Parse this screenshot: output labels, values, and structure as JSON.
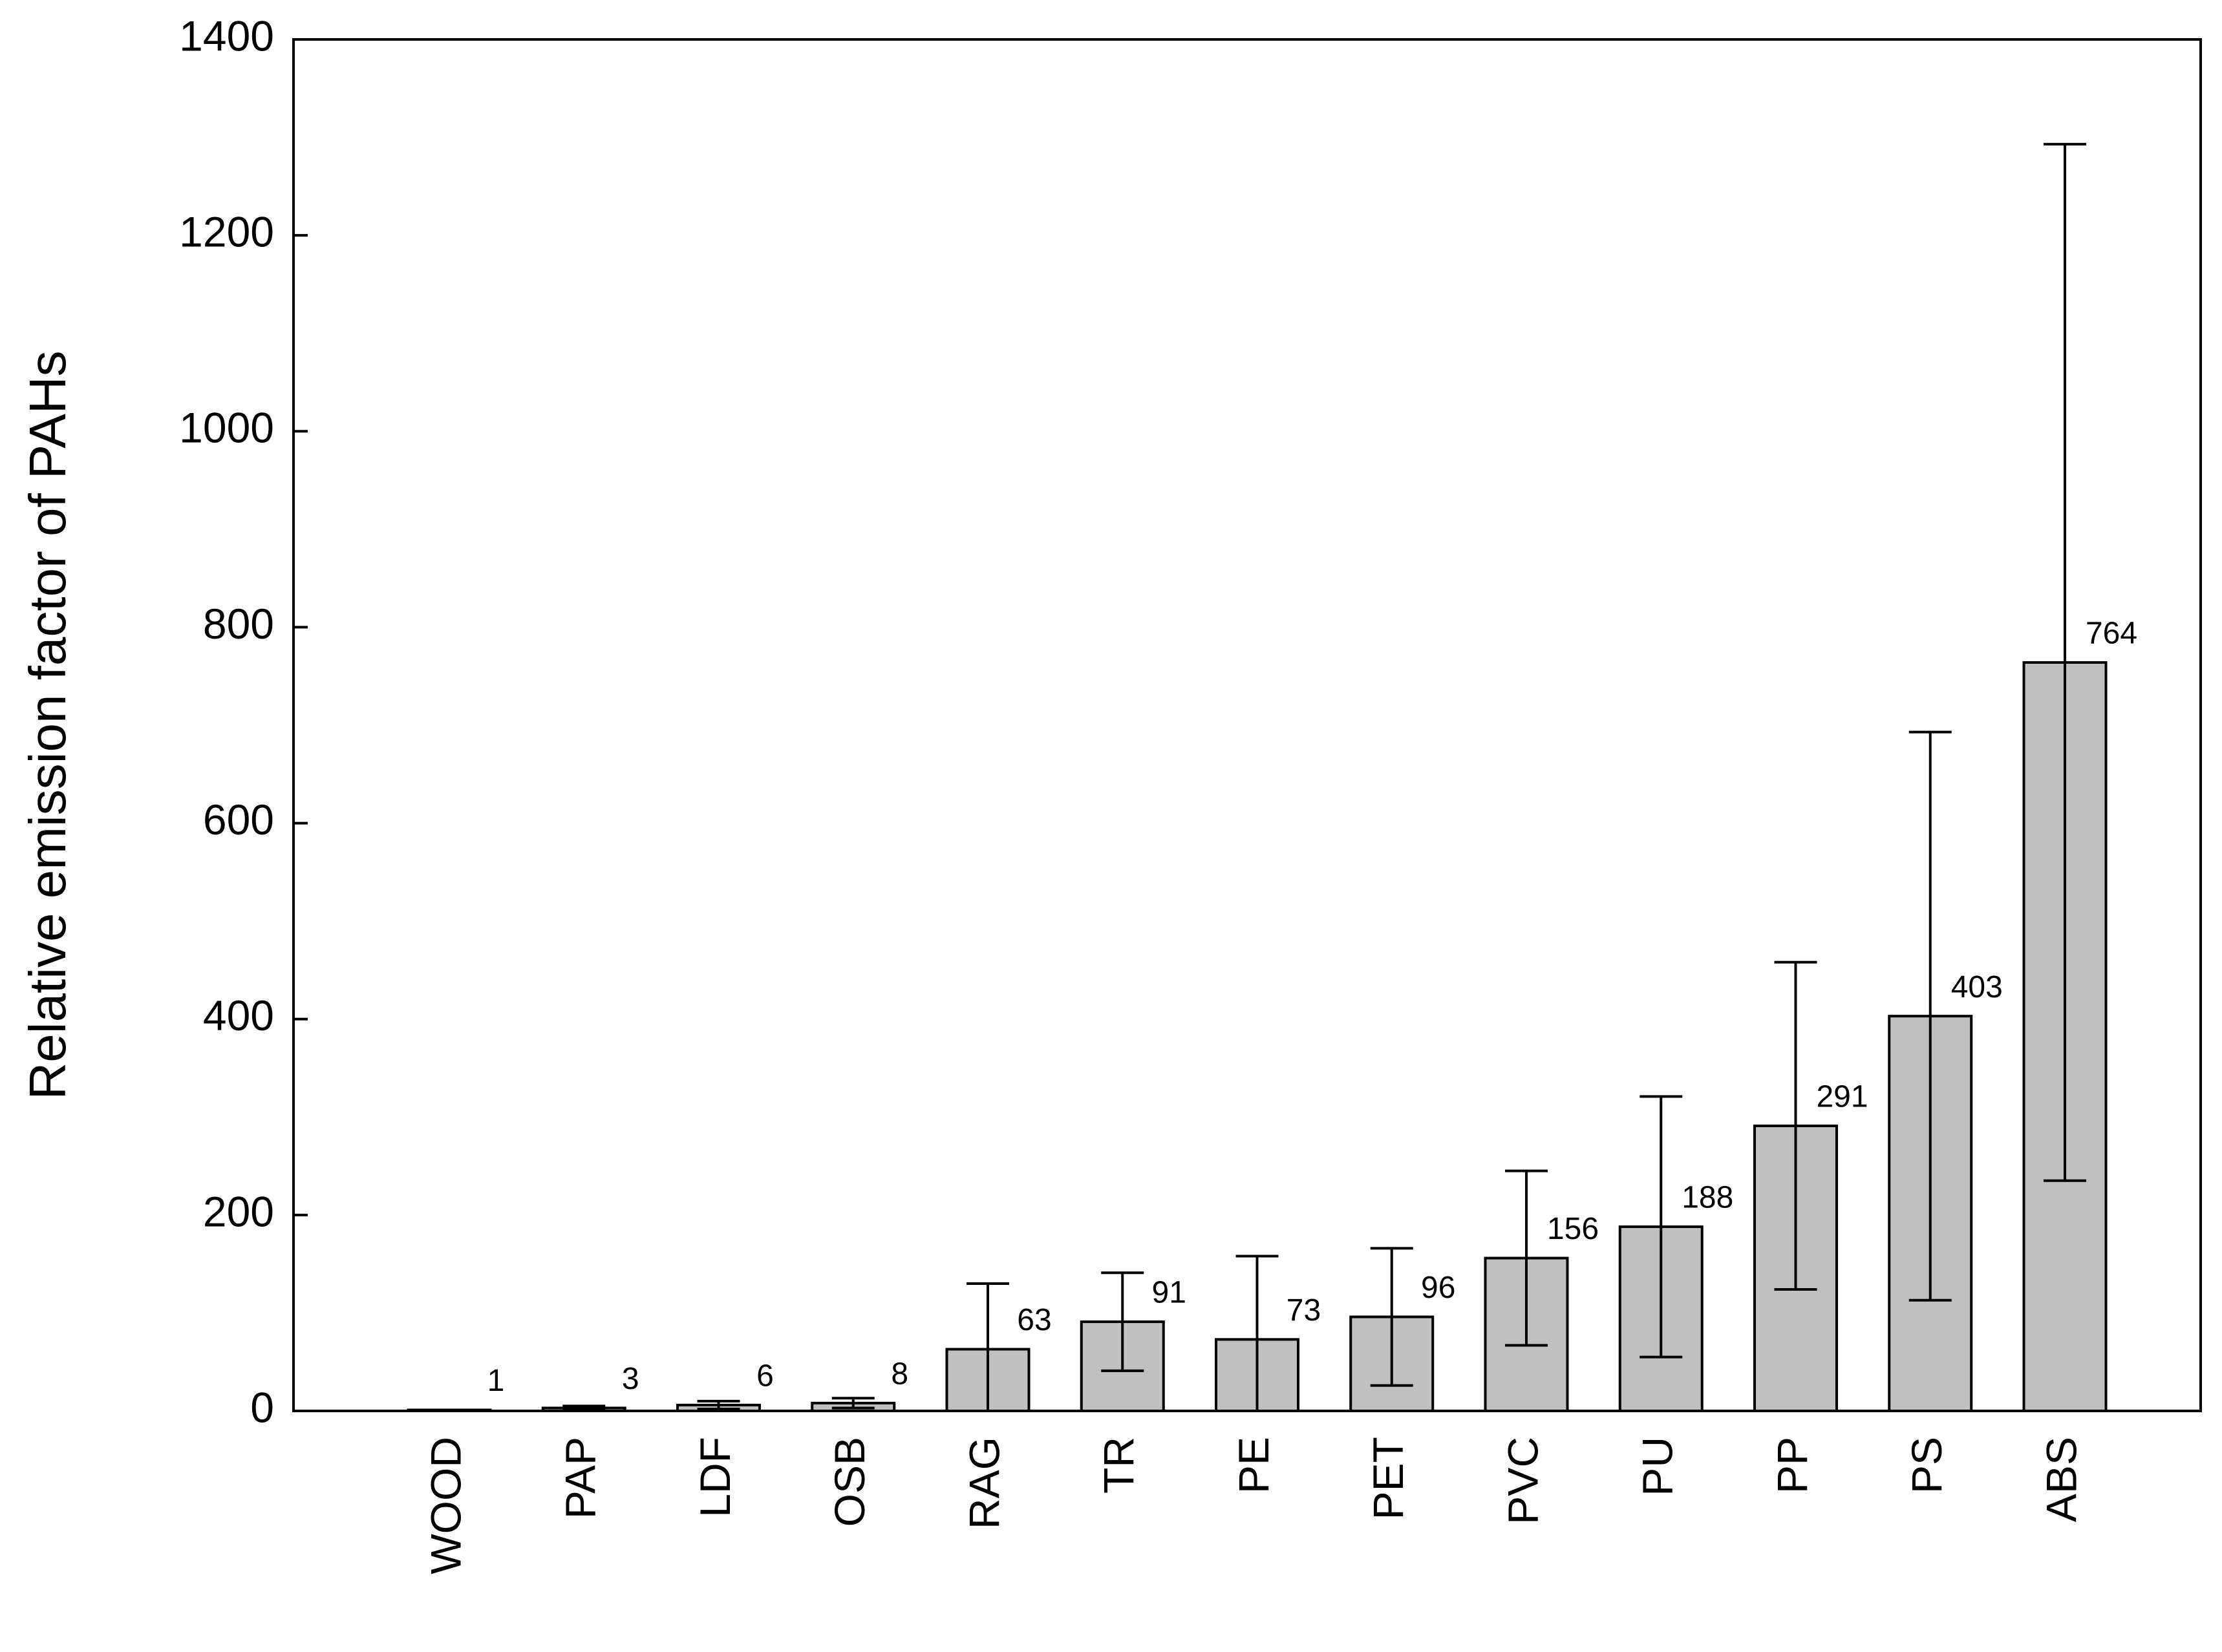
{
  "chart_data": {
    "type": "bar",
    "ylabel": "Relative emission factor of PAHs",
    "categories": [
      "WOOD",
      "PAP",
      "LDF",
      "OSB",
      "RAG",
      "TR",
      "PE",
      "PET",
      "PVC",
      "PU",
      "PP",
      "PS",
      "ABS"
    ],
    "values": [
      1,
      3,
      6,
      8,
      63,
      91,
      73,
      96,
      156,
      188,
      291,
      403,
      764
    ],
    "errors": [
      0,
      2,
      4,
      5,
      67,
      50,
      85,
      70,
      89,
      133,
      167,
      290,
      529
    ],
    "color": "#c0c0c0",
    "ylim": [
      0,
      1400
    ],
    "yticks": [
      0,
      200,
      400,
      600,
      800,
      1000,
      1200,
      1400
    ],
    "grid": false
  }
}
